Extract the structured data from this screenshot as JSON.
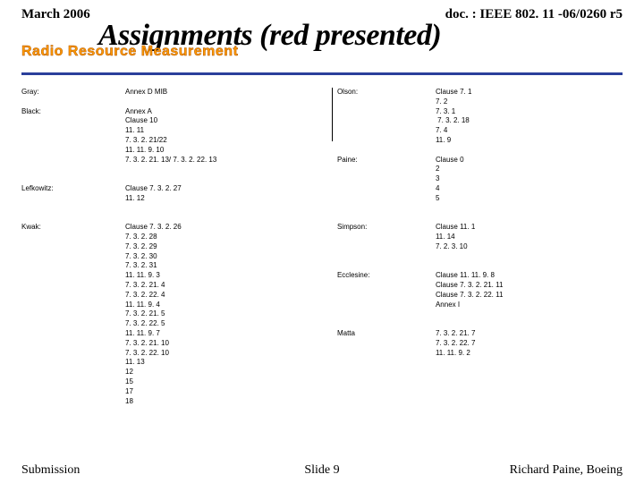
{
  "header": {
    "date": "March 2006",
    "doc": "doc. : IEEE 802. 11 -06/0260 r5"
  },
  "title": "Assignments (red presented)",
  "subtitle": "Radio Resource Measurement",
  "hr_color": "#2b3f9b",
  "subtitle_color": "#ff9a00",
  "left": {
    "rows": [
      {
        "label": "Gray:",
        "lines": [
          "Annex D MIB"
        ]
      },
      {
        "label": "Black:",
        "lines": [
          "Annex A",
          "Clause 10",
          "11. 11",
          "7. 3. 2. 21/22",
          "11. 11. 9. 10",
          "7. 3. 2. 21. 13/ 7. 3. 2. 22. 13"
        ]
      },
      {
        "label": "Lefkowitz:",
        "lines": [
          "Clause 7. 3. 2. 27",
          "11. 12"
        ]
      },
      {
        "label": "Kwak:",
        "lines": [
          "Clause 7. 3. 2. 26",
          "7. 3. 2. 28",
          "7. 3. 2. 29",
          "7. 3. 2. 30",
          "7. 3. 2. 31",
          "11. 11. 9. 3",
          "7. 3. 2. 21. 4",
          "7. 3. 2. 22. 4",
          "11. 11. 9. 4",
          "7. 3. 2. 21. 5",
          "7. 3. 2. 22. 5",
          "11. 11. 9. 7",
          "7. 3. 2. 21. 10",
          "7. 3. 2. 22. 10",
          "11. 13",
          "12",
          "15",
          "17",
          "18"
        ]
      }
    ],
    "spacing": [
      1,
      2,
      2,
      0
    ]
  },
  "right": {
    "rows": [
      {
        "label": "Olson:",
        "lines": [
          "Clause 7. 1",
          "7. 2",
          "7. 3. 1",
          " 7. 3. 2. 18",
          "7. 4",
          "11. 9"
        ]
      },
      {
        "label": "Paine:",
        "lines": [
          "Clause 0",
          "2",
          "3",
          "4",
          "5"
        ]
      },
      {
        "label": "Simpson:",
        "lines": [
          "Clause 11. 1",
          "11. 14",
          "7. 2. 3. 10"
        ]
      },
      {
        "label": "Ecclesine:",
        "lines": [
          "Clause 11. 11. 9. 8",
          "Clause 7. 3. 2. 21. 11",
          "Clause 7. 3. 2. 22. 11",
          "Annex I"
        ]
      },
      {
        "label": "Matta",
        "lines": [
          "7. 3. 2. 21. 7",
          "7. 3. 2. 22. 7",
          "11. 11. 9. 2"
        ]
      }
    ],
    "spacing": [
      1,
      2,
      2,
      2,
      0
    ]
  },
  "footer": {
    "left": "Submission",
    "center": "Slide 9",
    "right": "Richard Paine, Boeing"
  }
}
